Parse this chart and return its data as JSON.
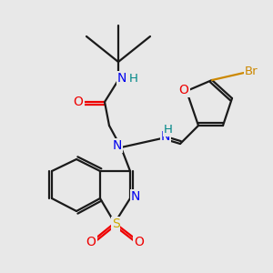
{
  "bg_color": "#e8e8e8",
  "atom_colors": {
    "C": "#1a1a1a",
    "N": "#0000ee",
    "O": "#ee0000",
    "S": "#ccaa00",
    "Br": "#cc8800",
    "H": "#008888"
  },
  "bond_color": "#1a1a1a",
  "figsize": [
    3.0,
    3.0
  ],
  "dpi": 100,
  "bond_lw": 1.6
}
